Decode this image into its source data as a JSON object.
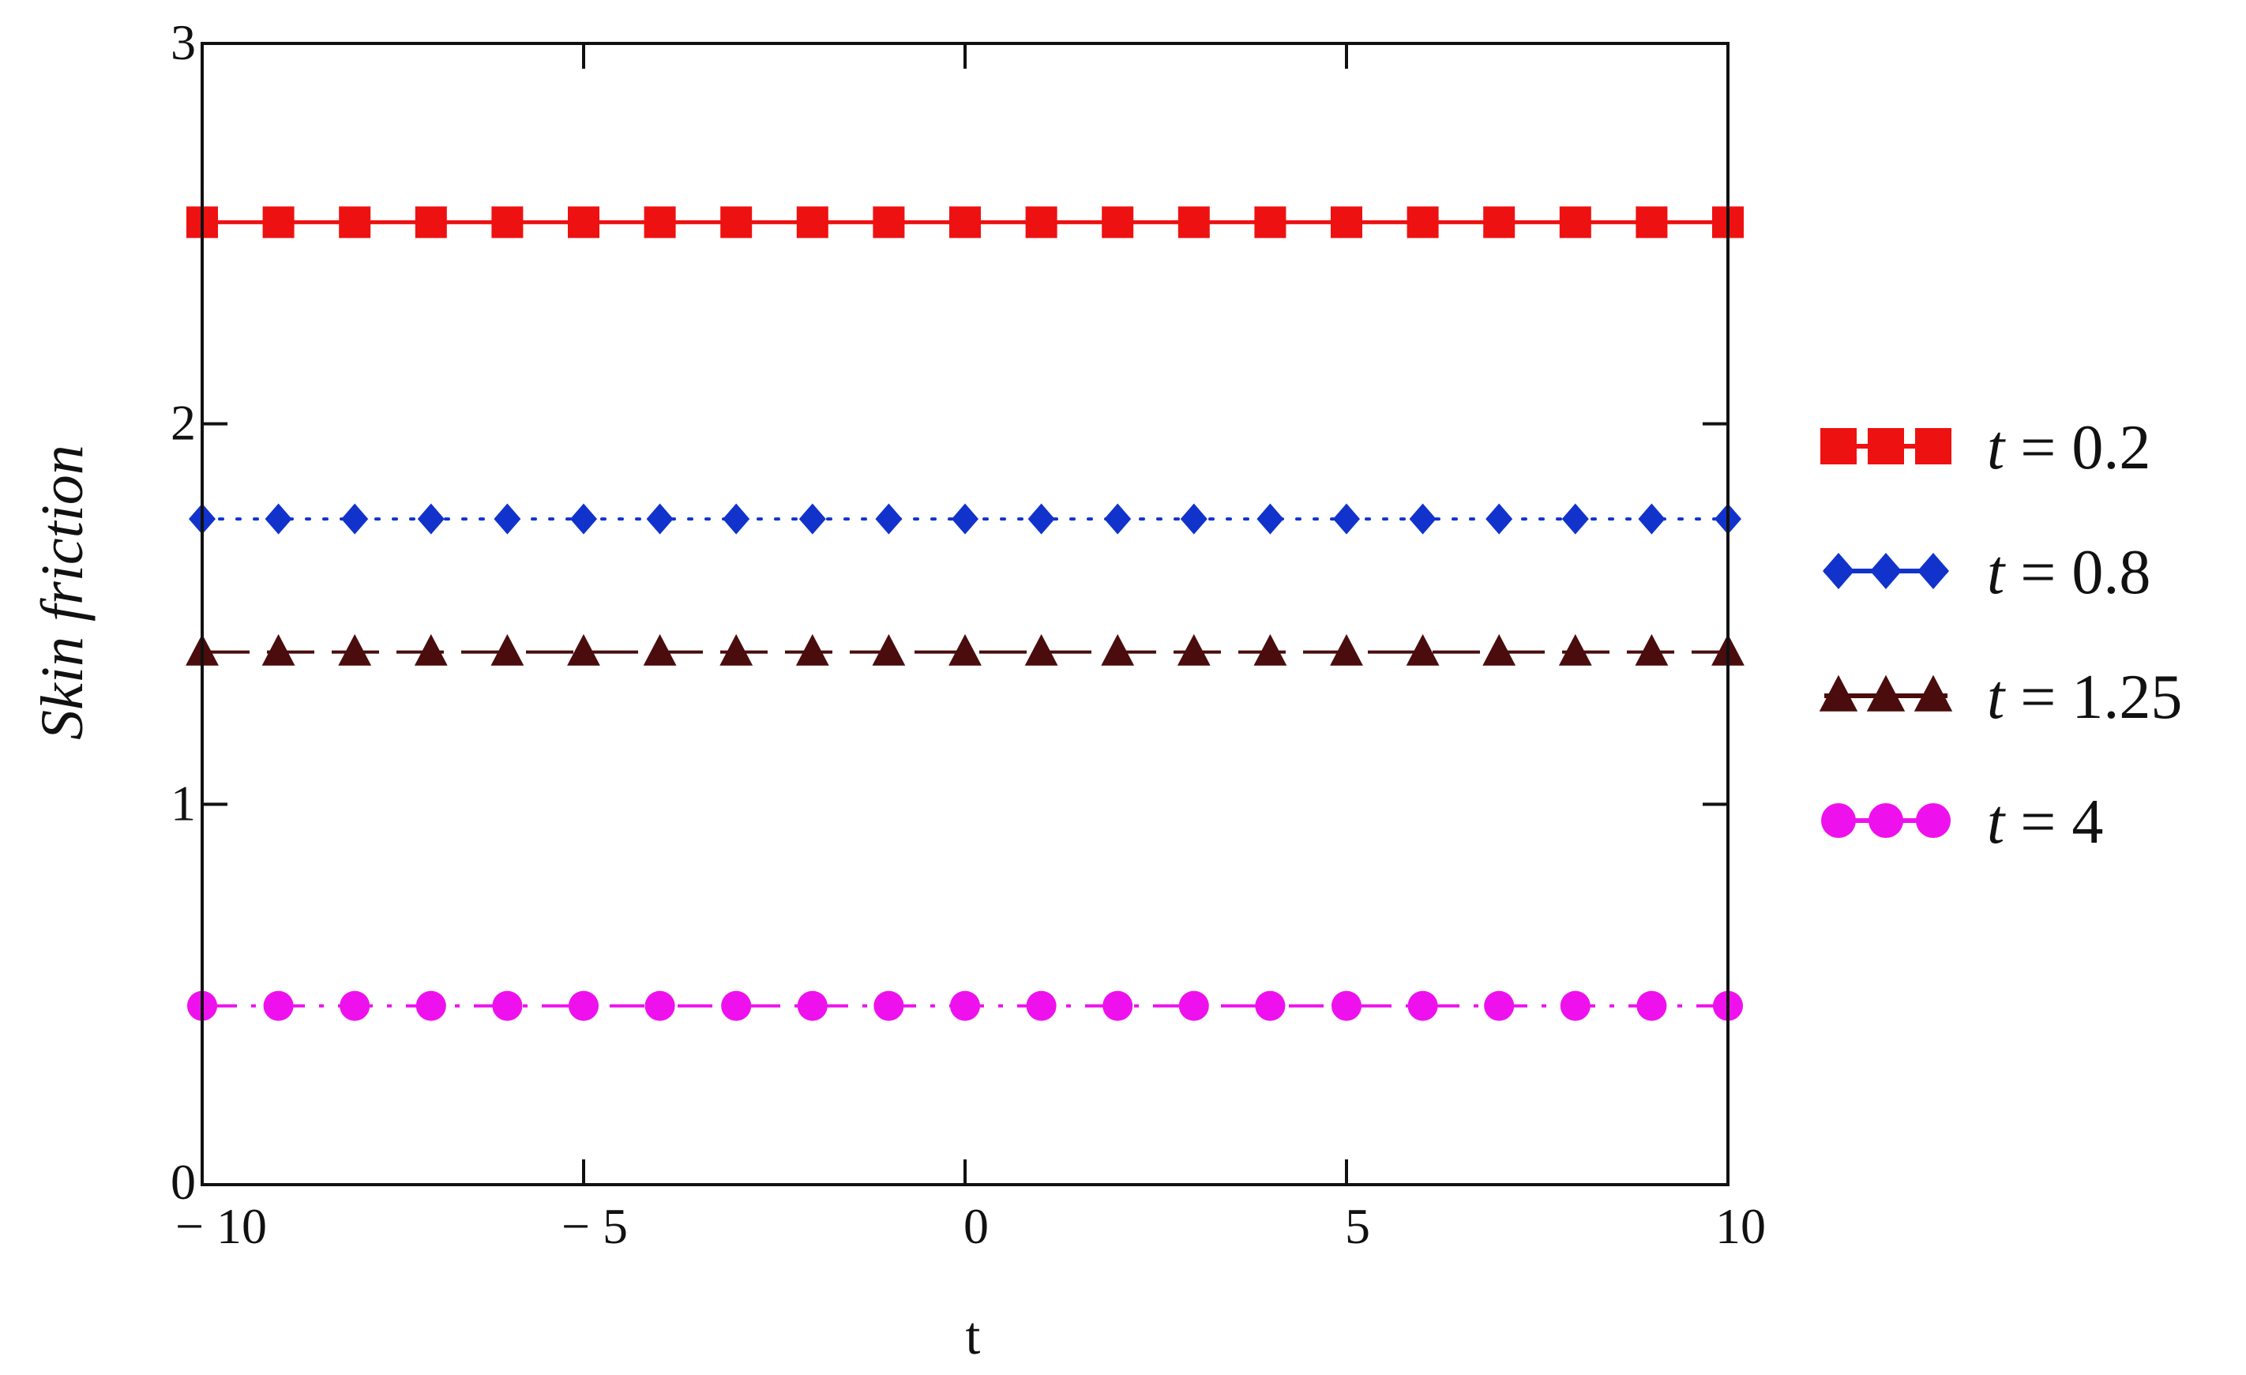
{
  "chart_data": {
    "type": "line",
    "title": "",
    "xlabel": "t",
    "ylabel": "Skin friction",
    "xlim": [
      -10,
      10
    ],
    "ylim": [
      0,
      3
    ],
    "x_ticks": [
      -10,
      -5,
      0,
      5,
      10
    ],
    "x_tick_labels": [
      "− 10",
      "− 5",
      "0",
      "5",
      "10"
    ],
    "y_ticks": [
      0,
      1,
      2,
      3
    ],
    "y_tick_labels": [
      "0",
      "1",
      "2",
      "3"
    ],
    "grid": false,
    "legend_position": "right",
    "x": [
      -10,
      -9,
      -8,
      -7,
      -6,
      -5,
      -4,
      -3,
      -2,
      -1,
      0,
      1,
      2,
      3,
      4,
      5,
      6,
      7,
      8,
      9,
      10
    ],
    "series": [
      {
        "name": "t = 0.2",
        "legend_var": "t",
        "legend_rest": " = 0.2",
        "color": "#ee1111",
        "marker": "square",
        "line_style": "solid",
        "values": [
          2.53,
          2.53,
          2.53,
          2.53,
          2.53,
          2.53,
          2.53,
          2.53,
          2.53,
          2.53,
          2.53,
          2.53,
          2.53,
          2.53,
          2.53,
          2.53,
          2.53,
          2.53,
          2.53,
          2.53,
          2.53
        ]
      },
      {
        "name": "t = 0.8",
        "legend_var": "t",
        "legend_rest": " = 0.8",
        "color": "#1133cc",
        "marker": "diamond",
        "line_style": "dotted",
        "values": [
          1.75,
          1.75,
          1.75,
          1.75,
          1.75,
          1.75,
          1.75,
          1.75,
          1.75,
          1.75,
          1.75,
          1.75,
          1.75,
          1.75,
          1.75,
          1.75,
          1.75,
          1.75,
          1.75,
          1.75,
          1.75
        ]
      },
      {
        "name": "t = 1.25",
        "legend_var": "t",
        "legend_rest": " = 1.25",
        "color": "#4a0c0c",
        "marker": "triangle",
        "line_style": "dashed",
        "values": [
          1.4,
          1.4,
          1.4,
          1.4,
          1.4,
          1.4,
          1.4,
          1.4,
          1.4,
          1.4,
          1.4,
          1.4,
          1.4,
          1.4,
          1.4,
          1.4,
          1.4,
          1.4,
          1.4,
          1.4,
          1.4
        ]
      },
      {
        "name": "t = 4",
        "legend_var": "t",
        "legend_rest": " = 4",
        "color": "#ee11ee",
        "marker": "circle",
        "line_style": "dashdot",
        "values": [
          0.47,
          0.47,
          0.47,
          0.47,
          0.47,
          0.47,
          0.47,
          0.47,
          0.47,
          0.47,
          0.47,
          0.47,
          0.47,
          0.47,
          0.47,
          0.47,
          0.47,
          0.47,
          0.47,
          0.47,
          0.47
        ]
      }
    ]
  }
}
